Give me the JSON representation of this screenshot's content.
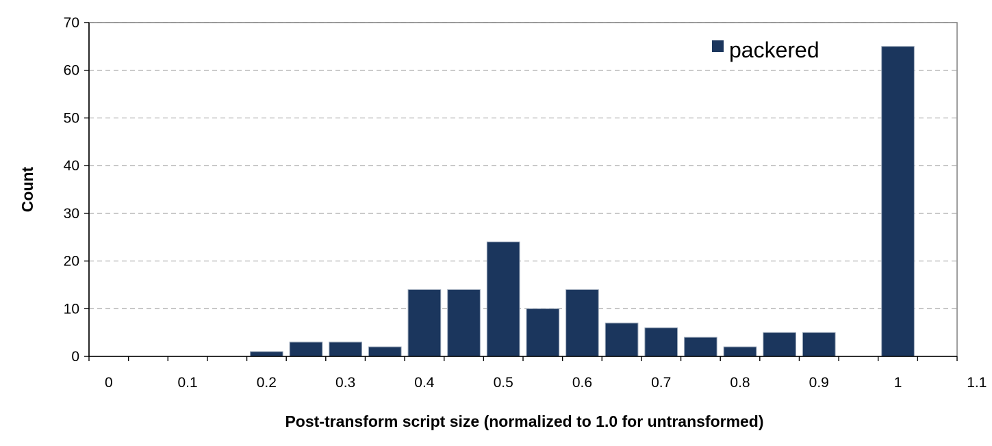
{
  "chart_data": {
    "type": "bar",
    "xlabel": "Post-transform script size (normalized to 1.0 for untransformed)",
    "ylabel": "Count",
    "xlim": [
      0,
      1.1
    ],
    "ylim": [
      0,
      70
    ],
    "x_ticks": [
      "0",
      "0.1",
      "0.2",
      "0.3",
      "0.4",
      "0.5",
      "0.6",
      "0.7",
      "0.8",
      "0.9",
      "1",
      "1.1"
    ],
    "y_ticks": [
      "0",
      "10",
      "20",
      "30",
      "40",
      "50",
      "60",
      "70"
    ],
    "bin_width": 0.05,
    "grid": "horizontal dashed",
    "legend_position": "top-right",
    "bar_color": "#1b365d",
    "series": [
      {
        "name": "packered",
        "bins": [
          {
            "x": 0.0,
            "value": 0
          },
          {
            "x": 0.05,
            "value": 0
          },
          {
            "x": 0.1,
            "value": 0
          },
          {
            "x": 0.15,
            "value": 0
          },
          {
            "x": 0.2,
            "value": 1
          },
          {
            "x": 0.25,
            "value": 3
          },
          {
            "x": 0.3,
            "value": 3
          },
          {
            "x": 0.35,
            "value": 2
          },
          {
            "x": 0.4,
            "value": 14
          },
          {
            "x": 0.45,
            "value": 14
          },
          {
            "x": 0.5,
            "value": 24
          },
          {
            "x": 0.55,
            "value": 10
          },
          {
            "x": 0.6,
            "value": 14
          },
          {
            "x": 0.65,
            "value": 7
          },
          {
            "x": 0.7,
            "value": 6
          },
          {
            "x": 0.75,
            "value": 4
          },
          {
            "x": 0.8,
            "value": 2
          },
          {
            "x": 0.85,
            "value": 5
          },
          {
            "x": 0.9,
            "value": 5
          },
          {
            "x": 0.95,
            "value": 0
          },
          {
            "x": 1.0,
            "value": 65
          },
          {
            "x": 1.05,
            "value": 0
          }
        ]
      }
    ]
  }
}
